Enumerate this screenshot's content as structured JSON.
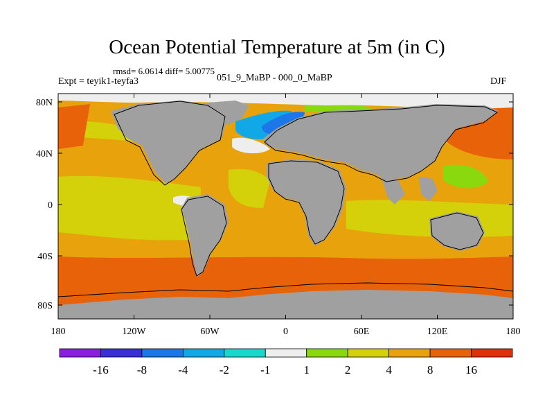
{
  "title": "Ocean Potential Temperature at 5m (in C)",
  "stats": "rmsd= 6.0614 diff= 5.00775",
  "expt": "Expt = teyik1-teyfa3",
  "subtitle": "051_9_MaBP - 000_0_MaBP",
  "season": "DJF",
  "axes": {
    "y_ticks": [
      "80N",
      "40N",
      "0",
      "40S",
      "80S"
    ],
    "x_ticks": [
      "180",
      "120W",
      "60W",
      "0",
      "60E",
      "120E",
      "180"
    ]
  },
  "colorbar": {
    "labels": [
      "-16",
      "-8",
      "-4",
      "-2",
      "-1",
      "1",
      "2",
      "4",
      "8",
      "16"
    ],
    "colors": [
      "#8a1fe0",
      "#3a2fd6",
      "#1c78e8",
      "#11a8e8",
      "#18d8cc",
      "#eeeeee",
      "#8ad80e",
      "#d4d00a",
      "#e8a20c",
      "#e8620a",
      "#e0300a"
    ]
  },
  "palette": {
    "land": "#a0a0a0",
    "no_data": "#eeeeee",
    "warm_strong": "#e8620a",
    "warm": "#e8a20c",
    "mild": "#d4d00a",
    "cool": "#8ad80e",
    "cold": "#11a8e8",
    "very_cold": "#1c78e8"
  }
}
